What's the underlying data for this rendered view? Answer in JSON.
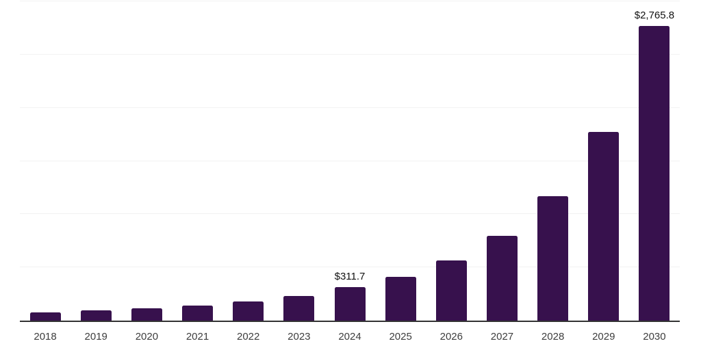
{
  "chart_data": {
    "type": "bar",
    "title": "",
    "xlabel": "",
    "ylabel": "",
    "categories": [
      "2018",
      "2019",
      "2020",
      "2021",
      "2022",
      "2023",
      "2024",
      "2025",
      "2026",
      "2027",
      "2028",
      "2029",
      "2030"
    ],
    "values": [
      77,
      96,
      115,
      143,
      182,
      232,
      311.7,
      411,
      567,
      799,
      1171,
      1773,
      2765.8
    ],
    "data_labels": [
      {
        "category": "2024",
        "text": "$311.7"
      },
      {
        "category": "2030",
        "text": "$2,765.8"
      }
    ],
    "ylim": [
      0,
      3000
    ],
    "gridline_step": 500,
    "grid": true,
    "legend": false,
    "y_tick_labels_visible": false,
    "colors": {
      "bar": "#37114D",
      "axis": "#333333",
      "gridline": "#f2f2f2",
      "tick_label": "#3d3d3d",
      "data_label": "#111111",
      "background": "#ffffff"
    }
  }
}
